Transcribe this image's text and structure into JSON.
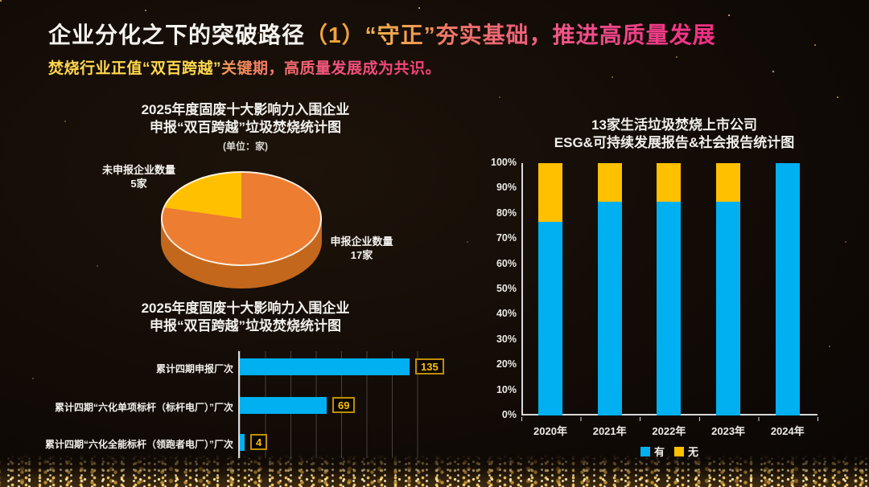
{
  "header": {
    "title_part_main": "企业分化之下的突破路径",
    "title_part_index": "（1）",
    "title_part_keyword": "“守正”",
    "title_part_rest": "夯实基础，推进高质量发展",
    "subtitle_part_yellow": "焚烧行业正值“双百跨越”",
    "subtitle_part_pink": "关键期，高质量发展成为共识。"
  },
  "colors": {
    "blue": "#00B0F0",
    "yellow": "#FFC000",
    "orange": "#ED7D31",
    "pie_side": "#C2671C",
    "value_box_border": "#BF8F00",
    "value_box_text": "#FFC000"
  },
  "chart_data": [
    {
      "id": "pie",
      "type": "pie",
      "title_lines": [
        "2025年度固废十大影响力入围企业",
        "申报“双百跨越”垃圾焚烧统计图"
      ],
      "unit_note": "(单位：家)",
      "slices": [
        {
          "label": "申报企业数量",
          "value_label": "17家",
          "value": 17,
          "color": "#ED7D31"
        },
        {
          "label": "未申报企业数量",
          "value_label": "5家",
          "value": 5,
          "color": "#FFC000"
        }
      ]
    },
    {
      "id": "hbar",
      "type": "bar",
      "title_lines": [
        "2025年度固废十大影响力入围企业",
        "申报“双百跨越”垃圾焚烧统计图"
      ],
      "categories": [
        "累计四期申报厂次",
        "累计四期“六化单项标杆（标杆电厂）”厂次",
        "累计四期“六化全能标杆（领跑者电厂）”厂次"
      ],
      "values": [
        135,
        69,
        4
      ],
      "xlim": [
        0,
        160
      ],
      "gridline_step": 20,
      "bar_color": "#00B0F0",
      "legend_position": "none"
    },
    {
      "id": "stacked",
      "type": "bar",
      "stacked": true,
      "title_lines": [
        "13家生活垃圾焚烧上市公司",
        "ESG&可持续发展报告&社会报告统计图"
      ],
      "categories": [
        "2020年",
        "2021年",
        "2022年",
        "2023年",
        "2024年"
      ],
      "series": [
        {
          "name": "有",
          "color": "#00B0F0",
          "values": [
            76.9,
            84.6,
            84.6,
            84.6,
            100
          ]
        },
        {
          "name": "无",
          "color": "#FFC000",
          "values": [
            23.1,
            15.4,
            15.4,
            15.4,
            0
          ]
        }
      ],
      "ylim": [
        0,
        100
      ],
      "ytick_labels": [
        "100%",
        "90%",
        "80%",
        "70%",
        "60%",
        "50%",
        "40%",
        "30%",
        "20%",
        "10%",
        "0%"
      ],
      "legend": [
        "有",
        "无"
      ],
      "legend_position": "bottom-center"
    }
  ]
}
